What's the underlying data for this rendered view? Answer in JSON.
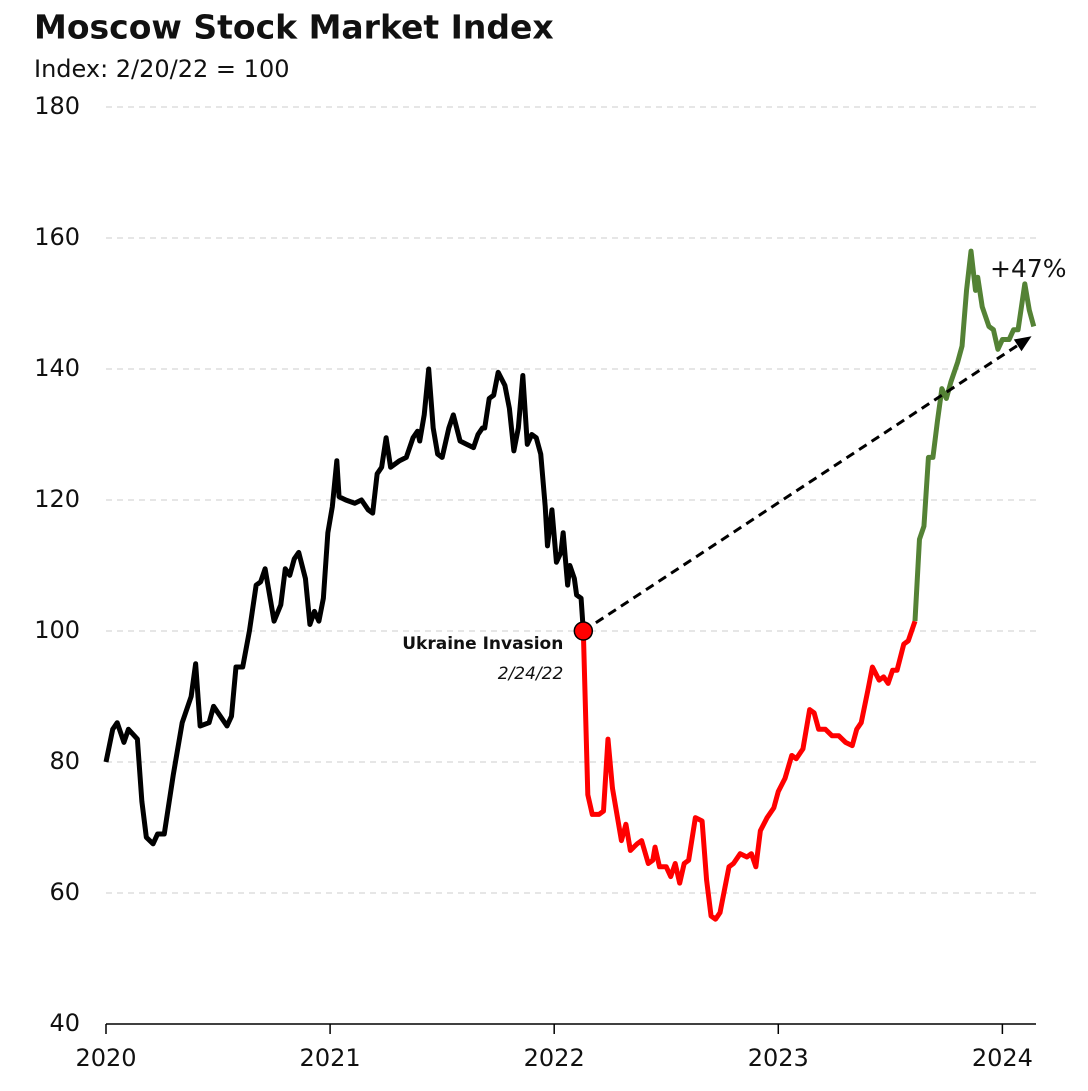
{
  "chart_data": {
    "type": "line",
    "title": "Moscow Stock Market Index",
    "subtitle": "Index: 2/20/22 = 100",
    "xlim": [
      2020,
      2024.15
    ],
    "xticks": [
      2020,
      2021,
      2022,
      2023,
      2024
    ],
    "ylim": [
      40,
      180
    ],
    "yticks": [
      40,
      60,
      80,
      100,
      120,
      140,
      160,
      180
    ],
    "grid": true,
    "series": [
      {
        "color": "#000000",
        "x": [
          2020.0,
          2020.03,
          2020.05,
          2020.08,
          2020.1,
          2020.14,
          2020.16,
          2020.18,
          2020.21,
          2020.23,
          2020.26,
          2020.3,
          2020.34,
          2020.38,
          2020.4,
          2020.42,
          2020.46,
          2020.48,
          2020.51,
          2020.54,
          2020.56,
          2020.58,
          2020.61,
          2020.64,
          2020.67,
          2020.69,
          2020.71,
          2020.75,
          2020.78,
          2020.8,
          2020.82,
          2020.84,
          2020.86,
          2020.89,
          2020.91,
          2020.93,
          2020.95,
          2020.97,
          2020.99,
          2021.01,
          2021.03,
          2021.04,
          2021.07,
          2021.11,
          2021.14,
          2021.17,
          2021.19,
          2021.21,
          2021.23,
          2021.25,
          2021.27,
          2021.31,
          2021.34,
          2021.37,
          2021.39,
          2021.4,
          2021.42,
          2021.44,
          2021.46,
          2021.48,
          2021.5,
          2021.53,
          2021.55,
          2021.58,
          2021.61,
          2021.64,
          2021.66,
          2021.68,
          2021.69,
          2021.71,
          2021.73,
          2021.75,
          2021.78,
          2021.8,
          2021.82,
          2021.84,
          2021.86,
          2021.88,
          2021.9,
          2021.92,
          2021.94,
          2021.96,
          2021.97,
          2021.99,
          2022.01,
          2022.03,
          2022.04,
          2022.06,
          2022.07,
          2022.09,
          2022.1,
          2022.12,
          2022.13
        ],
        "values": [
          80,
          85,
          86,
          83,
          85,
          83.5,
          74,
          68.5,
          67.5,
          69,
          69,
          78,
          86,
          90,
          95,
          85.5,
          86,
          88.5,
          87,
          85.5,
          87,
          94.5,
          94.5,
          100,
          107,
          107.5,
          109.5,
          101.5,
          104,
          109.5,
          108.5,
          111,
          112,
          108,
          101,
          103,
          101.5,
          105,
          115,
          119,
          126,
          120.5,
          120,
          119.5,
          120,
          118.5,
          118,
          124,
          125,
          129.5,
          125,
          126,
          126.5,
          129.5,
          130.5,
          129,
          133,
          140,
          131,
          127,
          126.5,
          131,
          133,
          129,
          128.5,
          128,
          130,
          131,
          131,
          135.5,
          136,
          139.5,
          137.5,
          134,
          127.5,
          131,
          139,
          128.5,
          130,
          129.5,
          127,
          119,
          113,
          118.5,
          110.5,
          112,
          115,
          107,
          110,
          108,
          105.5,
          105,
          100
        ]
      },
      {
        "color": "#ff0000",
        "x": [
          2022.13,
          2022.15,
          2022.17,
          2022.2,
          2022.22,
          2022.24,
          2022.26,
          2022.3,
          2022.32,
          2022.34,
          2022.37,
          2022.39,
          2022.42,
          2022.44,
          2022.45,
          2022.47,
          2022.5,
          2022.52,
          2022.54,
          2022.56,
          2022.58,
          2022.6,
          2022.63,
          2022.66,
          2022.68,
          2022.7,
          2022.72,
          2022.74,
          2022.78,
          2022.8,
          2022.83,
          2022.86,
          2022.88,
          2022.9,
          2022.92,
          2022.95,
          2022.98,
          2023.0,
          2023.03,
          2023.06,
          2023.08,
          2023.11,
          2023.14,
          2023.16,
          2023.18,
          2023.21,
          2023.24,
          2023.27,
          2023.3,
          2023.33,
          2023.35,
          2023.37,
          2023.4,
          2023.42,
          2023.45,
          2023.47,
          2023.49,
          2023.51,
          2023.53,
          2023.56,
          2023.58,
          2023.61
        ],
        "values": [
          100,
          75,
          72,
          72,
          72.5,
          83.5,
          76,
          68,
          70.5,
          66.5,
          67.5,
          68,
          64.5,
          65,
          67,
          64,
          64,
          62.5,
          64.5,
          61.5,
          64.5,
          65,
          71.5,
          71,
          62,
          56.5,
          56,
          57,
          64,
          64.5,
          66,
          65.5,
          66,
          64,
          69.5,
          71.5,
          73,
          75.5,
          77.5,
          81,
          80.5,
          82,
          88,
          87.5,
          85,
          85,
          84,
          84,
          83,
          82.5,
          85,
          86,
          91,
          94.5,
          92.5,
          93,
          92,
          94,
          94,
          98,
          98.5,
          101.5
        ]
      },
      {
        "color": "#548235",
        "x": [
          2023.61,
          2023.63,
          2023.65,
          2023.67,
          2023.69,
          2023.71,
          2023.73,
          2023.75,
          2023.77,
          2023.8,
          2023.82,
          2023.84,
          2023.86,
          2023.88,
          2023.89,
          2023.91,
          2023.94,
          2023.96,
          2023.98,
          2024.0,
          2024.03,
          2024.05,
          2024.07,
          2024.1,
          2024.12,
          2024.14
        ],
        "values": [
          101.5,
          114,
          116,
          126.5,
          126.5,
          132,
          137,
          135.5,
          138,
          141,
          143.5,
          152,
          158,
          152,
          154,
          149.5,
          146.5,
          146,
          143,
          144.5,
          144.5,
          146,
          146,
          153,
          149,
          146.5
        ]
      }
    ],
    "annotations": [
      {
        "text": "Ukraine Invasion",
        "subtext": "2/24/22",
        "x": 2022.13,
        "y": 100,
        "color": "#ff0000"
      },
      {
        "text": "+47%",
        "arrow": {
          "x": [
            2022.13,
            2024.13
          ],
          "y": [
            100,
            145
          ]
        }
      }
    ]
  }
}
